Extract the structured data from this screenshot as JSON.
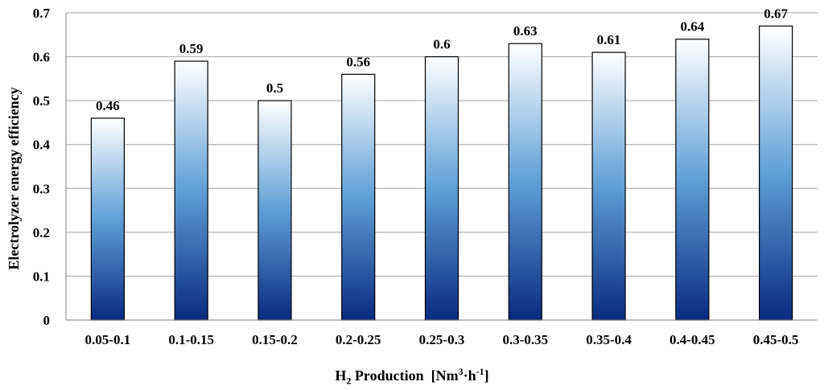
{
  "chart_data": {
    "type": "bar",
    "categories": [
      "0.05-0.1",
      "0.1-0.15",
      "0.15-0.2",
      "0.2-0.25",
      "0.25-0.3",
      "0.3-0.35",
      "0.35-0.4",
      "0.4-0.45",
      "0.45-0.5"
    ],
    "values": [
      0.46,
      0.59,
      0.5,
      0.56,
      0.6,
      0.63,
      0.61,
      0.64,
      0.67
    ],
    "data_labels": [
      "0.46",
      "0.59",
      "0.5",
      "0.56",
      "0.6",
      "0.63",
      "0.61",
      "0.64",
      "0.67"
    ],
    "ylabel": "Electrolyzer energy efficiency",
    "xlabel": {
      "h": "H",
      "sub": "2",
      "mid": " Production  [Nm",
      "sup1": "3",
      "dot": "·h",
      "sup2": "-1",
      "end": "]"
    },
    "ylim": [
      0,
      0.7
    ],
    "yticks": [
      "0",
      "0.1",
      "0.2",
      "0.3",
      "0.4",
      "0.5",
      "0.6",
      "0.7"
    ],
    "grid": true,
    "colors": {
      "bar_top": "#ffffff",
      "bar_mid": "#5f9fd6",
      "bar_bottom": "#0a2a80",
      "bar_outline": "#000000",
      "grid": "#a6a6a6",
      "axis": "#808080"
    }
  }
}
